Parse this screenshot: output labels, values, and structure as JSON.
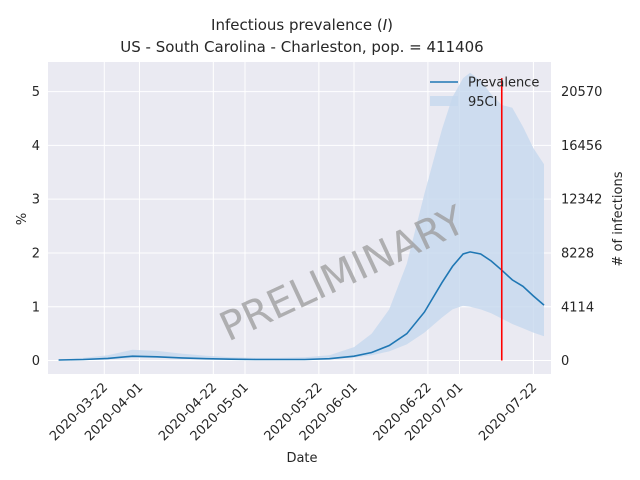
{
  "chart_data": {
    "type": "line",
    "title_line1": "Infectious prevalence (",
    "title_symbol": "I",
    "title_line1_end": ")",
    "title_line2": "US - South Carolina - Charleston, pop. = 411406",
    "xlabel": "Date",
    "ylabel": "%",
    "ylabel_right": "# of infections",
    "watermark": "PRELIMINARY",
    "x_start": "2020-03-06",
    "x_end": "2020-07-27",
    "ylim": [
      -0.25,
      5.55
    ],
    "x_ticks": [
      "2020-03-22",
      "2020-04-01",
      "2020-04-22",
      "2020-05-01",
      "2020-05-22",
      "2020-06-01",
      "2020-06-22",
      "2020-07-01",
      "2020-07-22"
    ],
    "y_ticks": [
      "0",
      "1",
      "2",
      "3",
      "4",
      "5"
    ],
    "y_ticks_right": [
      "0",
      "4114",
      "8228",
      "12342",
      "16456",
      "20570"
    ],
    "y_ticks_right_values": [
      0,
      4114,
      8228,
      12342,
      16456,
      20570
    ],
    "population": 411406,
    "vline_date": "2020-07-13",
    "vline_color": "#ff0000",
    "series_color": "#1f77b4",
    "band_color": "#c6d8ee",
    "legend": {
      "position": "top-right",
      "entries": [
        {
          "label": "Prevalence"
        },
        {
          "label": "95CI"
        }
      ]
    },
    "series": [
      {
        "name": "Prevalence",
        "x": [
          "2020-03-09",
          "2020-03-16",
          "2020-03-23",
          "2020-03-30",
          "2020-04-06",
          "2020-04-13",
          "2020-04-20",
          "2020-04-27",
          "2020-05-04",
          "2020-05-11",
          "2020-05-18",
          "2020-05-25",
          "2020-06-01",
          "2020-06-06",
          "2020-06-11",
          "2020-06-16",
          "2020-06-21",
          "2020-06-26",
          "2020-06-29",
          "2020-07-02",
          "2020-07-04",
          "2020-07-07",
          "2020-07-10",
          "2020-07-13",
          "2020-07-16",
          "2020-07-19",
          "2020-07-22",
          "2020-07-25"
        ],
        "values": [
          0.01,
          0.02,
          0.04,
          0.08,
          0.07,
          0.05,
          0.035,
          0.025,
          0.02,
          0.02,
          0.02,
          0.035,
          0.08,
          0.15,
          0.28,
          0.5,
          0.9,
          1.45,
          1.75,
          1.98,
          2.02,
          1.98,
          1.85,
          1.68,
          1.5,
          1.38,
          1.2,
          1.03
        ]
      },
      {
        "name": "95CI",
        "x": [
          "2020-03-09",
          "2020-03-16",
          "2020-03-23",
          "2020-03-30",
          "2020-04-06",
          "2020-04-13",
          "2020-04-20",
          "2020-04-27",
          "2020-05-04",
          "2020-05-11",
          "2020-05-18",
          "2020-05-25",
          "2020-06-01",
          "2020-06-06",
          "2020-06-11",
          "2020-06-16",
          "2020-06-21",
          "2020-06-26",
          "2020-06-29",
          "2020-07-02",
          "2020-07-04",
          "2020-07-07",
          "2020-07-10",
          "2020-07-13",
          "2020-07-16",
          "2020-07-19",
          "2020-07-22",
          "2020-07-25"
        ],
        "lower": [
          0.0,
          0.01,
          0.02,
          0.05,
          0.05,
          0.035,
          0.025,
          0.018,
          0.014,
          0.014,
          0.015,
          0.025,
          0.055,
          0.1,
          0.17,
          0.3,
          0.52,
          0.8,
          0.95,
          1.02,
          1.0,
          0.95,
          0.88,
          0.78,
          0.68,
          0.6,
          0.52,
          0.45
        ],
        "upper": [
          0.02,
          0.05,
          0.1,
          0.2,
          0.18,
          0.13,
          0.09,
          0.06,
          0.05,
          0.05,
          0.06,
          0.1,
          0.25,
          0.5,
          0.95,
          1.8,
          3.1,
          4.3,
          4.9,
          5.25,
          5.35,
          5.2,
          4.95,
          4.75,
          4.7,
          4.35,
          3.95,
          3.65
        ]
      }
    ]
  }
}
